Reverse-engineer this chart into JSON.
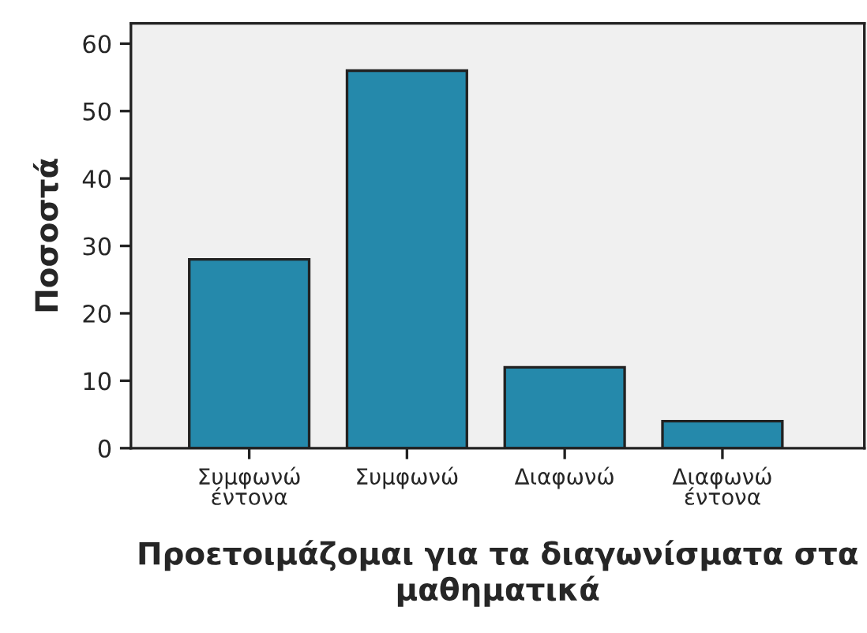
{
  "chart_data": {
    "type": "bar",
    "xlabel": "Προετοιμάζομαι για τα διαγωνίσματα στα μαθηματικά",
    "ylabel": "Ποσοστά",
    "categories": [
      "Συμφωνώ\nέντονα",
      "Συμφωνώ",
      "Διαφωνώ",
      "Διαφωνώ\nέντονα"
    ],
    "values": [
      28,
      56,
      12,
      4
    ],
    "color": "#2589ab",
    "ylim": [
      0,
      63
    ],
    "yticks": [
      0,
      10,
      20,
      30,
      40,
      50,
      60
    ],
    "grid": false,
    "legend": false
  }
}
